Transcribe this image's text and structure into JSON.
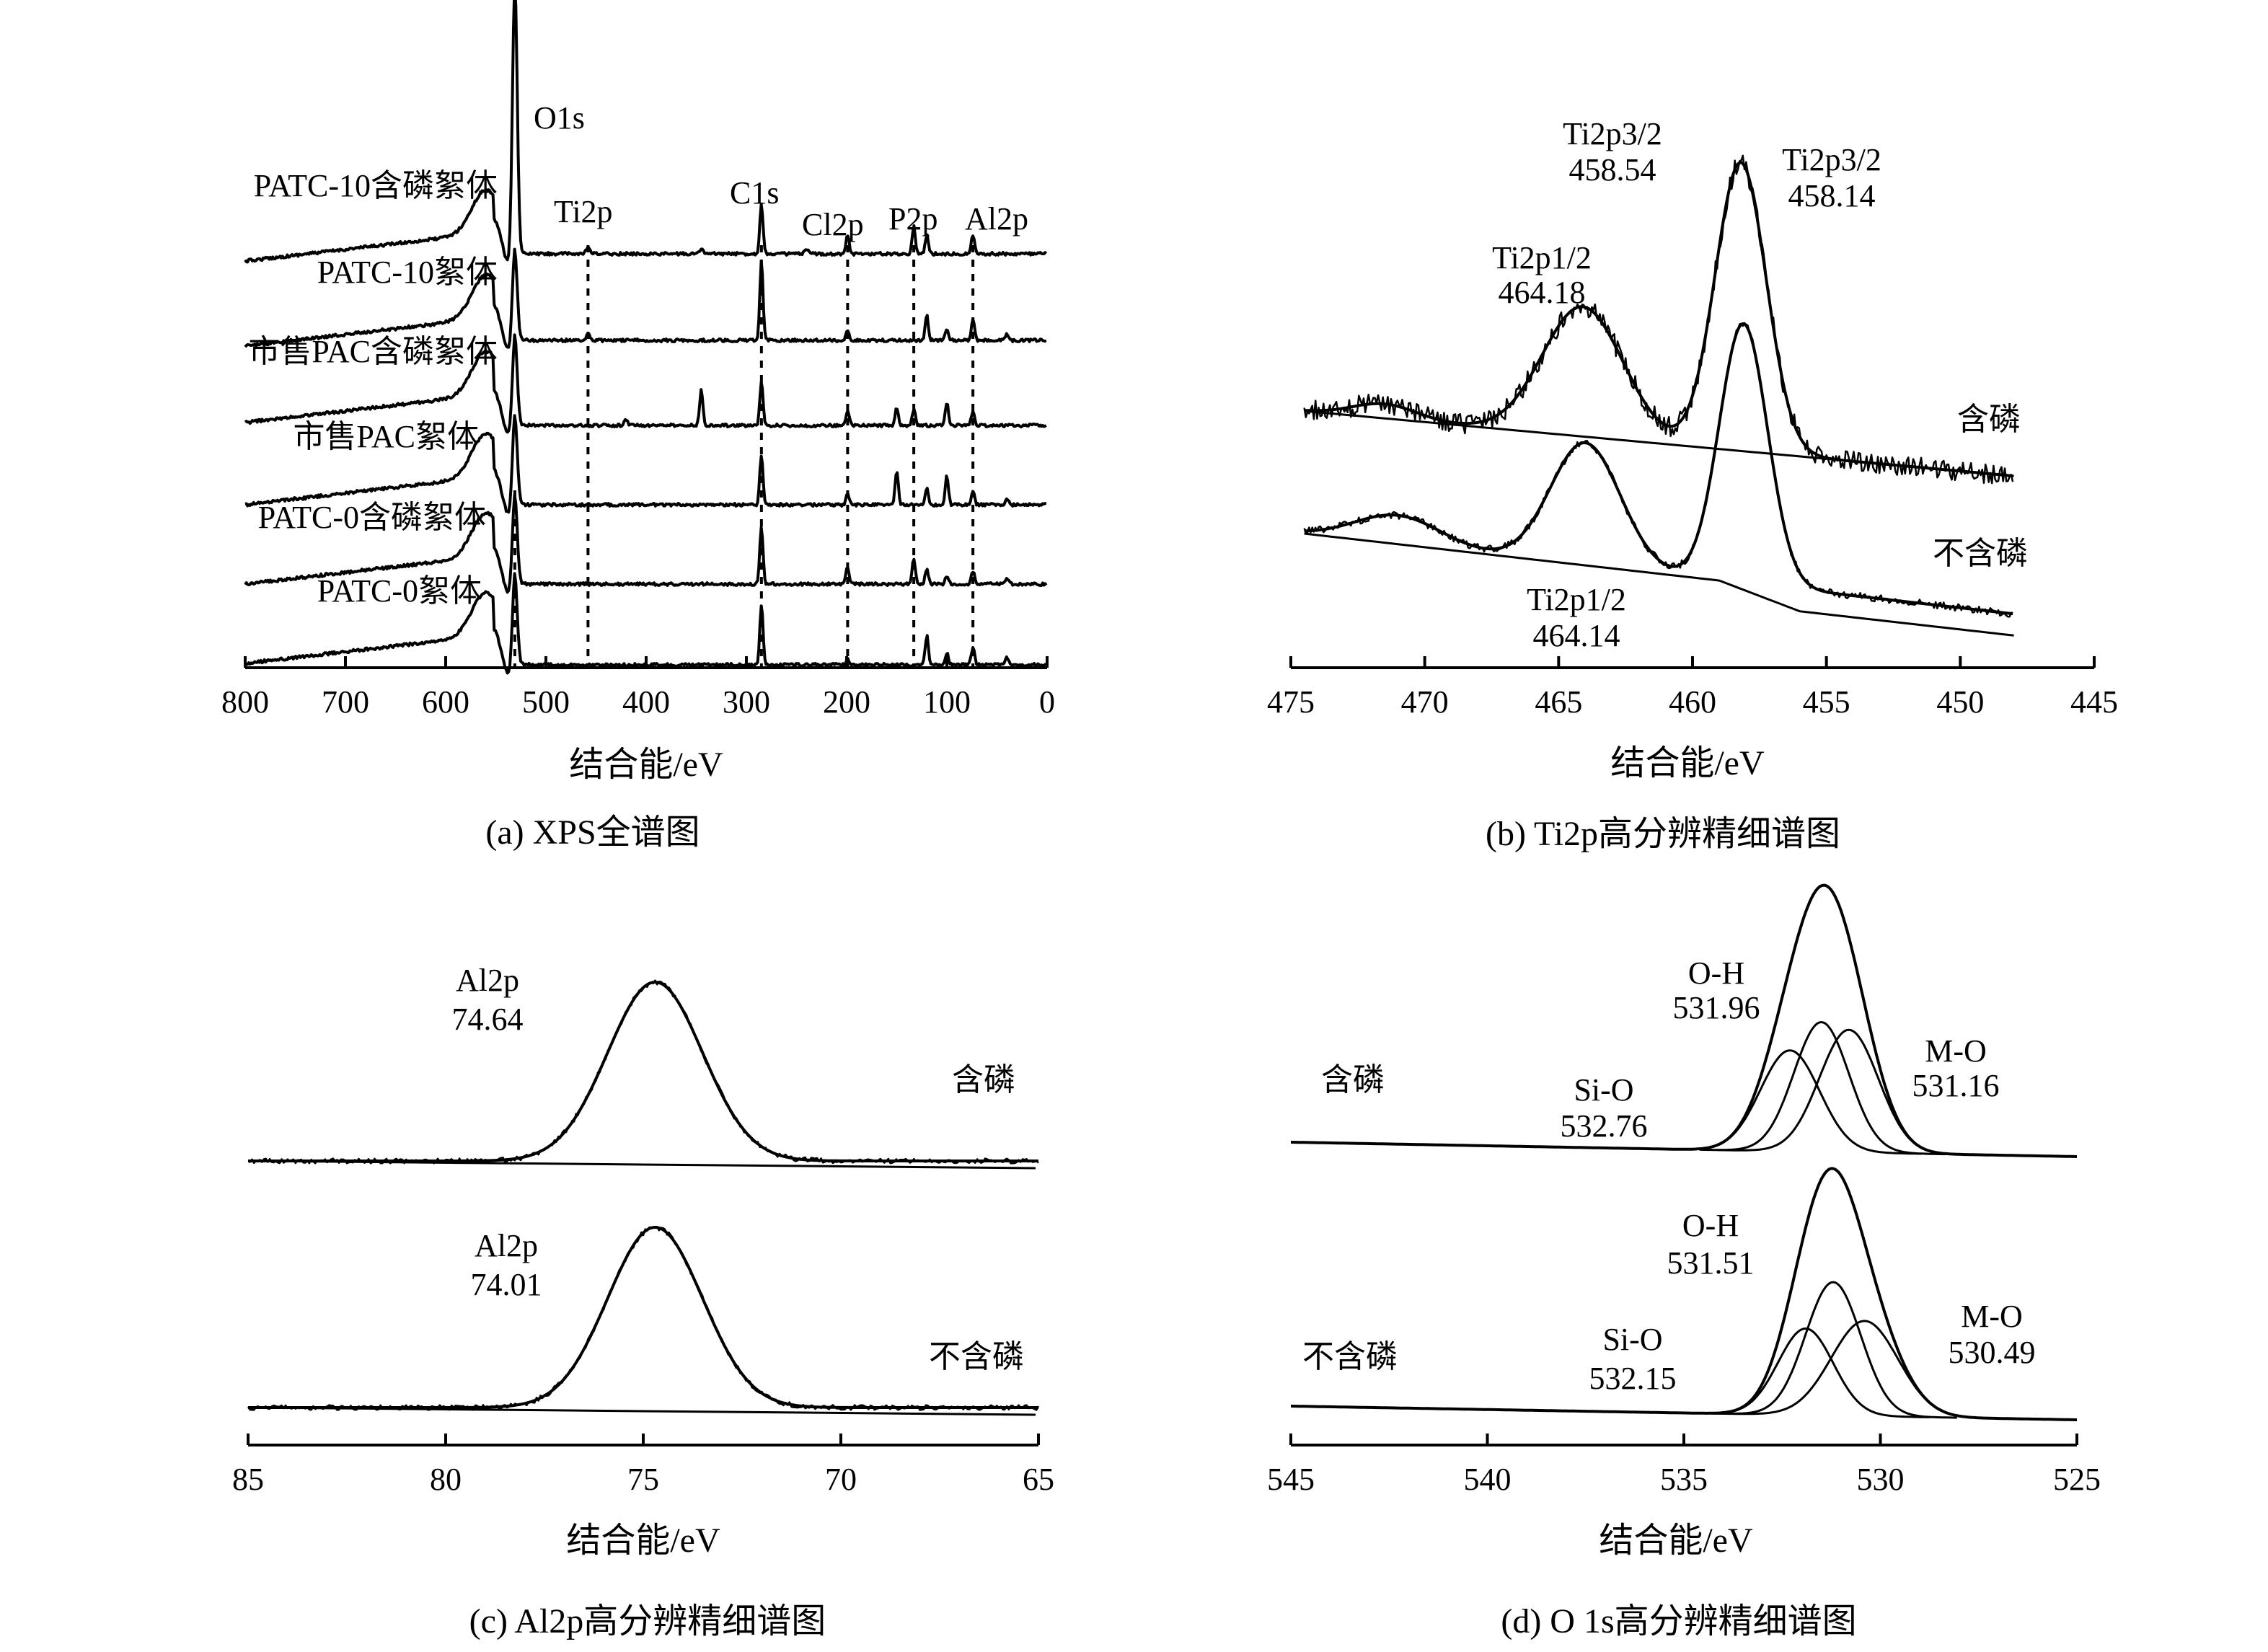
{
  "chart_data": [
    {
      "id": "a",
      "type": "line",
      "caption": "(a) XPS全谱图",
      "xlabel": "结合能/eV",
      "xlim": [
        800,
        0
      ],
      "xticks": [
        800,
        700,
        600,
        500,
        400,
        300,
        200,
        100,
        0
      ],
      "yaxis_visible": false,
      "grid": false,
      "series": [
        {
          "name": "PATC-10含磷絮体"
        },
        {
          "name": "PATC-10絮体"
        },
        {
          "name": "市售PAC含磷絮体"
        },
        {
          "name": "市售PAC絮体"
        },
        {
          "name": "PATC-0含磷絮体"
        },
        {
          "name": "PATC-0絮体"
        }
      ],
      "peaks": [
        {
          "label": "O1s",
          "x": 531
        },
        {
          "label": "Ti2p",
          "x": 458
        },
        {
          "label": "C1s",
          "x": 285
        },
        {
          "label": "Cl2p",
          "x": 199
        },
        {
          "label": "P2p",
          "x": 133
        },
        {
          "label": "Al2p",
          "x": 74
        }
      ]
    },
    {
      "id": "b",
      "type": "line",
      "caption": "(b) Ti2p高分辨精细谱图",
      "xlabel": "结合能/eV",
      "xlim": [
        475,
        445
      ],
      "xticks": [
        475,
        470,
        465,
        460,
        455,
        450,
        445
      ],
      "yaxis_visible": false,
      "grid": false,
      "series": [
        {
          "name": "含磷",
          "fits": [
            {
              "label": "Ti2p1/2",
              "value": "464.18"
            },
            {
              "label": "Ti2p3/2",
              "value": "458.54"
            },
            {
              "label": "Ti2p3/2",
              "value": "458.14"
            }
          ]
        },
        {
          "name": "不含磷",
          "fits": [
            {
              "label": "Ti2p1/2",
              "value": "464.14"
            }
          ]
        }
      ]
    },
    {
      "id": "c",
      "type": "line",
      "caption": "(c) Al2p高分辨精细谱图",
      "xlabel": "结合能/eV",
      "xlim": [
        85,
        65
      ],
      "xticks": [
        85,
        80,
        75,
        70,
        65
      ],
      "yaxis_visible": false,
      "grid": false,
      "series": [
        {
          "name": "含磷",
          "fits": [
            {
              "label": "Al2p",
              "value": "74.64"
            }
          ]
        },
        {
          "name": "不含磷",
          "fits": [
            {
              "label": "Al2p",
              "value": "74.01"
            }
          ]
        }
      ]
    },
    {
      "id": "d",
      "type": "line",
      "caption": "(d) O 1s高分辨精细谱图",
      "xlabel": "结合能/eV",
      "xlim": [
        545,
        525
      ],
      "xticks": [
        545,
        540,
        535,
        530,
        525
      ],
      "yaxis_visible": false,
      "grid": false,
      "series": [
        {
          "name": "含磷",
          "fits": [
            {
              "label": "O-H",
              "value": "531.96"
            },
            {
              "label": "Si-O",
              "value": "532.76"
            },
            {
              "label": "M-O",
              "value": "531.16"
            }
          ]
        },
        {
          "name": "不含磷",
          "fits": [
            {
              "label": "O-H",
              "value": "531.51"
            },
            {
              "label": "Si-O",
              "value": "532.15"
            },
            {
              "label": "M-O",
              "value": "530.49"
            }
          ]
        }
      ]
    }
  ]
}
